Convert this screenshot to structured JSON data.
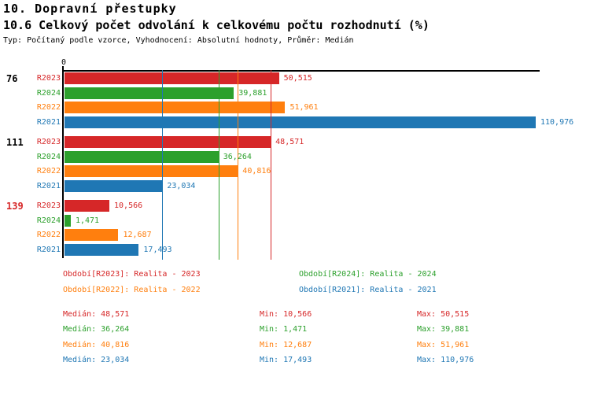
{
  "title": "10. Dopravní přestupky",
  "subtitle": "10.6 Celkový počet odvolání k celkovému počtu rozhodnutí (%)",
  "meta": "Typ: Počítaný podle vzorce, Vyhodnocení: Absolutní hodnoty, Průměr: Medián",
  "colors": {
    "text": "#000000",
    "axis": "#000000",
    "group_highlight": "#d62728",
    "background": "#ffffff"
  },
  "chart_data": {
    "type": "bar",
    "orientation": "horizontal",
    "title": "10.6 Celkový počet odvolání k celkovému počtu rozhodnutí (%)",
    "x_axis": {
      "zero_label": "0",
      "min": 0,
      "max": 110976,
      "gridlines": "median-per-series"
    },
    "series": [
      {
        "id": "R2023",
        "color": "#d62728",
        "legend": "Období[R2023]: Realita - 2023",
        "median": 48571
      },
      {
        "id": "R2024",
        "color": "#2ca02c",
        "legend": "Období[R2024]: Realita - 2024",
        "median": 36264
      },
      {
        "id": "R2022",
        "color": "#ff7f0e",
        "legend": "Období[R2022]: Realita - 2022",
        "median": 40816
      },
      {
        "id": "R2021",
        "color": "#1f77b4",
        "legend": "Období[R2021]: Realita - 2021",
        "median": 23034
      }
    ],
    "groups": [
      {
        "label": "76",
        "highlight": false,
        "values": [
          50515,
          39881,
          51961,
          110976
        ],
        "displays": [
          "50,515",
          "39,881",
          "51,961",
          "110,976"
        ]
      },
      {
        "label": "111",
        "highlight": false,
        "values": [
          48571,
          36264,
          40816,
          23034
        ],
        "displays": [
          "48,571",
          "36,264",
          "40,816",
          "23,034"
        ]
      },
      {
        "label": "139",
        "highlight": true,
        "values": [
          10566,
          1471,
          12687,
          17493
        ],
        "displays": [
          "10,566",
          "1,471",
          "12,687",
          "17,493"
        ]
      }
    ]
  },
  "stats": {
    "median_label": "Medián:",
    "min_label": "Min:",
    "max_label": "Max:",
    "rows": [
      {
        "series": "R2023",
        "median": "48,571",
        "min": "10,566",
        "max": "50,515"
      },
      {
        "series": "R2024",
        "median": "36,264",
        "min": "1,471",
        "max": "39,881"
      },
      {
        "series": "R2022",
        "median": "40,816",
        "min": "12,687",
        "max": "51,961"
      },
      {
        "series": "R2021",
        "median": "23,034",
        "min": "17,493",
        "max": "110,976"
      }
    ]
  }
}
